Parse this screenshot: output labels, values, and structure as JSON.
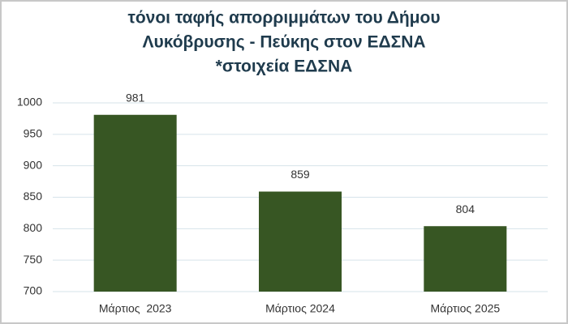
{
  "chart_data": {
    "type": "bar",
    "title": [
      "τόνοι ταφής απορριμμάτων του Δήμου",
      "Λυκόβρυσης - Πεύκης στον ΕΔΣΝΑ",
      "*στοιχεία ΕΔΣΝΑ"
    ],
    "categories": [
      "Μάρτιος  2023",
      "Μάρτιος 2024",
      "Μάρτιος 2025"
    ],
    "values": [
      981,
      859,
      804
    ],
    "color": "#375623",
    "ylim": [
      700,
      1000
    ],
    "yticks": [
      700,
      750,
      800,
      850,
      900,
      950,
      1000
    ],
    "grid": true
  }
}
